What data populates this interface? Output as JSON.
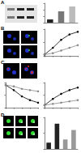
{
  "panel_labels": [
    "A",
    "B",
    "C",
    "D"
  ],
  "chart_data": [
    {
      "type": "bar",
      "categories": [
        null,
        null,
        null
      ],
      "values": [
        1,
        3.5,
        5
      ],
      "colors": [
        "#222222",
        "#777777",
        "#bbbbbb"
      ],
      "ylim": [
        0,
        6
      ],
      "yticks": [
        0,
        2,
        4,
        6
      ],
      "grid": false,
      "tick_labels": false
    },
    {
      "type": "line",
      "x": [
        0,
        12,
        24,
        36,
        48
      ],
      "xlim": [
        0,
        48
      ],
      "xticks": [
        0,
        12,
        24,
        36,
        48
      ],
      "ylim": [
        0,
        100
      ],
      "yticks": [
        0,
        50,
        100
      ],
      "grid": false,
      "tick_labels": false,
      "series": [
        {
          "color": "#000000",
          "marker": "circle",
          "values": [
            5,
            30,
            60,
            80,
            90
          ]
        },
        {
          "color": "#888888",
          "marker": "circle",
          "values": [
            5,
            10,
            20,
            30,
            40
          ]
        }
      ]
    },
    {
      "type": "line",
      "x": [
        0,
        12,
        24,
        36,
        48
      ],
      "xlim": [
        0,
        48
      ],
      "xticks": [
        0,
        12,
        24,
        36,
        48
      ],
      "ylim": [
        0,
        100
      ],
      "yticks": [
        0,
        50,
        100
      ],
      "grid": false,
      "tick_labels": false,
      "series": [
        {
          "color": "#000000",
          "marker": "circle",
          "values": [
            90,
            70,
            45,
            30,
            20
          ]
        },
        {
          "color": "#888888",
          "marker": "circle",
          "values": [
            90,
            85,
            75,
            70,
            65
          ]
        }
      ]
    },
    {
      "type": "line",
      "x": [
        0,
        12,
        24,
        36,
        48
      ],
      "xlim": [
        0,
        48
      ],
      "xticks": [
        0,
        12,
        24,
        36,
        48
      ],
      "ylim": [
        0,
        100
      ],
      "yticks": [
        0,
        50,
        100
      ],
      "grid": false,
      "tick_labels": false,
      "series": [
        {
          "color": "#000000",
          "marker": "circle",
          "values": [
            10,
            35,
            55,
            70,
            80
          ]
        },
        {
          "color": "#888888",
          "marker": "circle",
          "values": [
            10,
            15,
            20,
            25,
            30
          ]
        }
      ]
    },
    {
      "type": "bar",
      "categories": [
        null,
        null,
        null,
        null
      ],
      "values": [
        10,
        40,
        15,
        30
      ],
      "colors": [
        "#222222",
        "#222222",
        "#999999",
        "#999999"
      ],
      "ylim": [
        0,
        50
      ],
      "yticks": [
        0,
        25,
        50
      ],
      "grid": false,
      "tick_labels": false
    }
  ]
}
